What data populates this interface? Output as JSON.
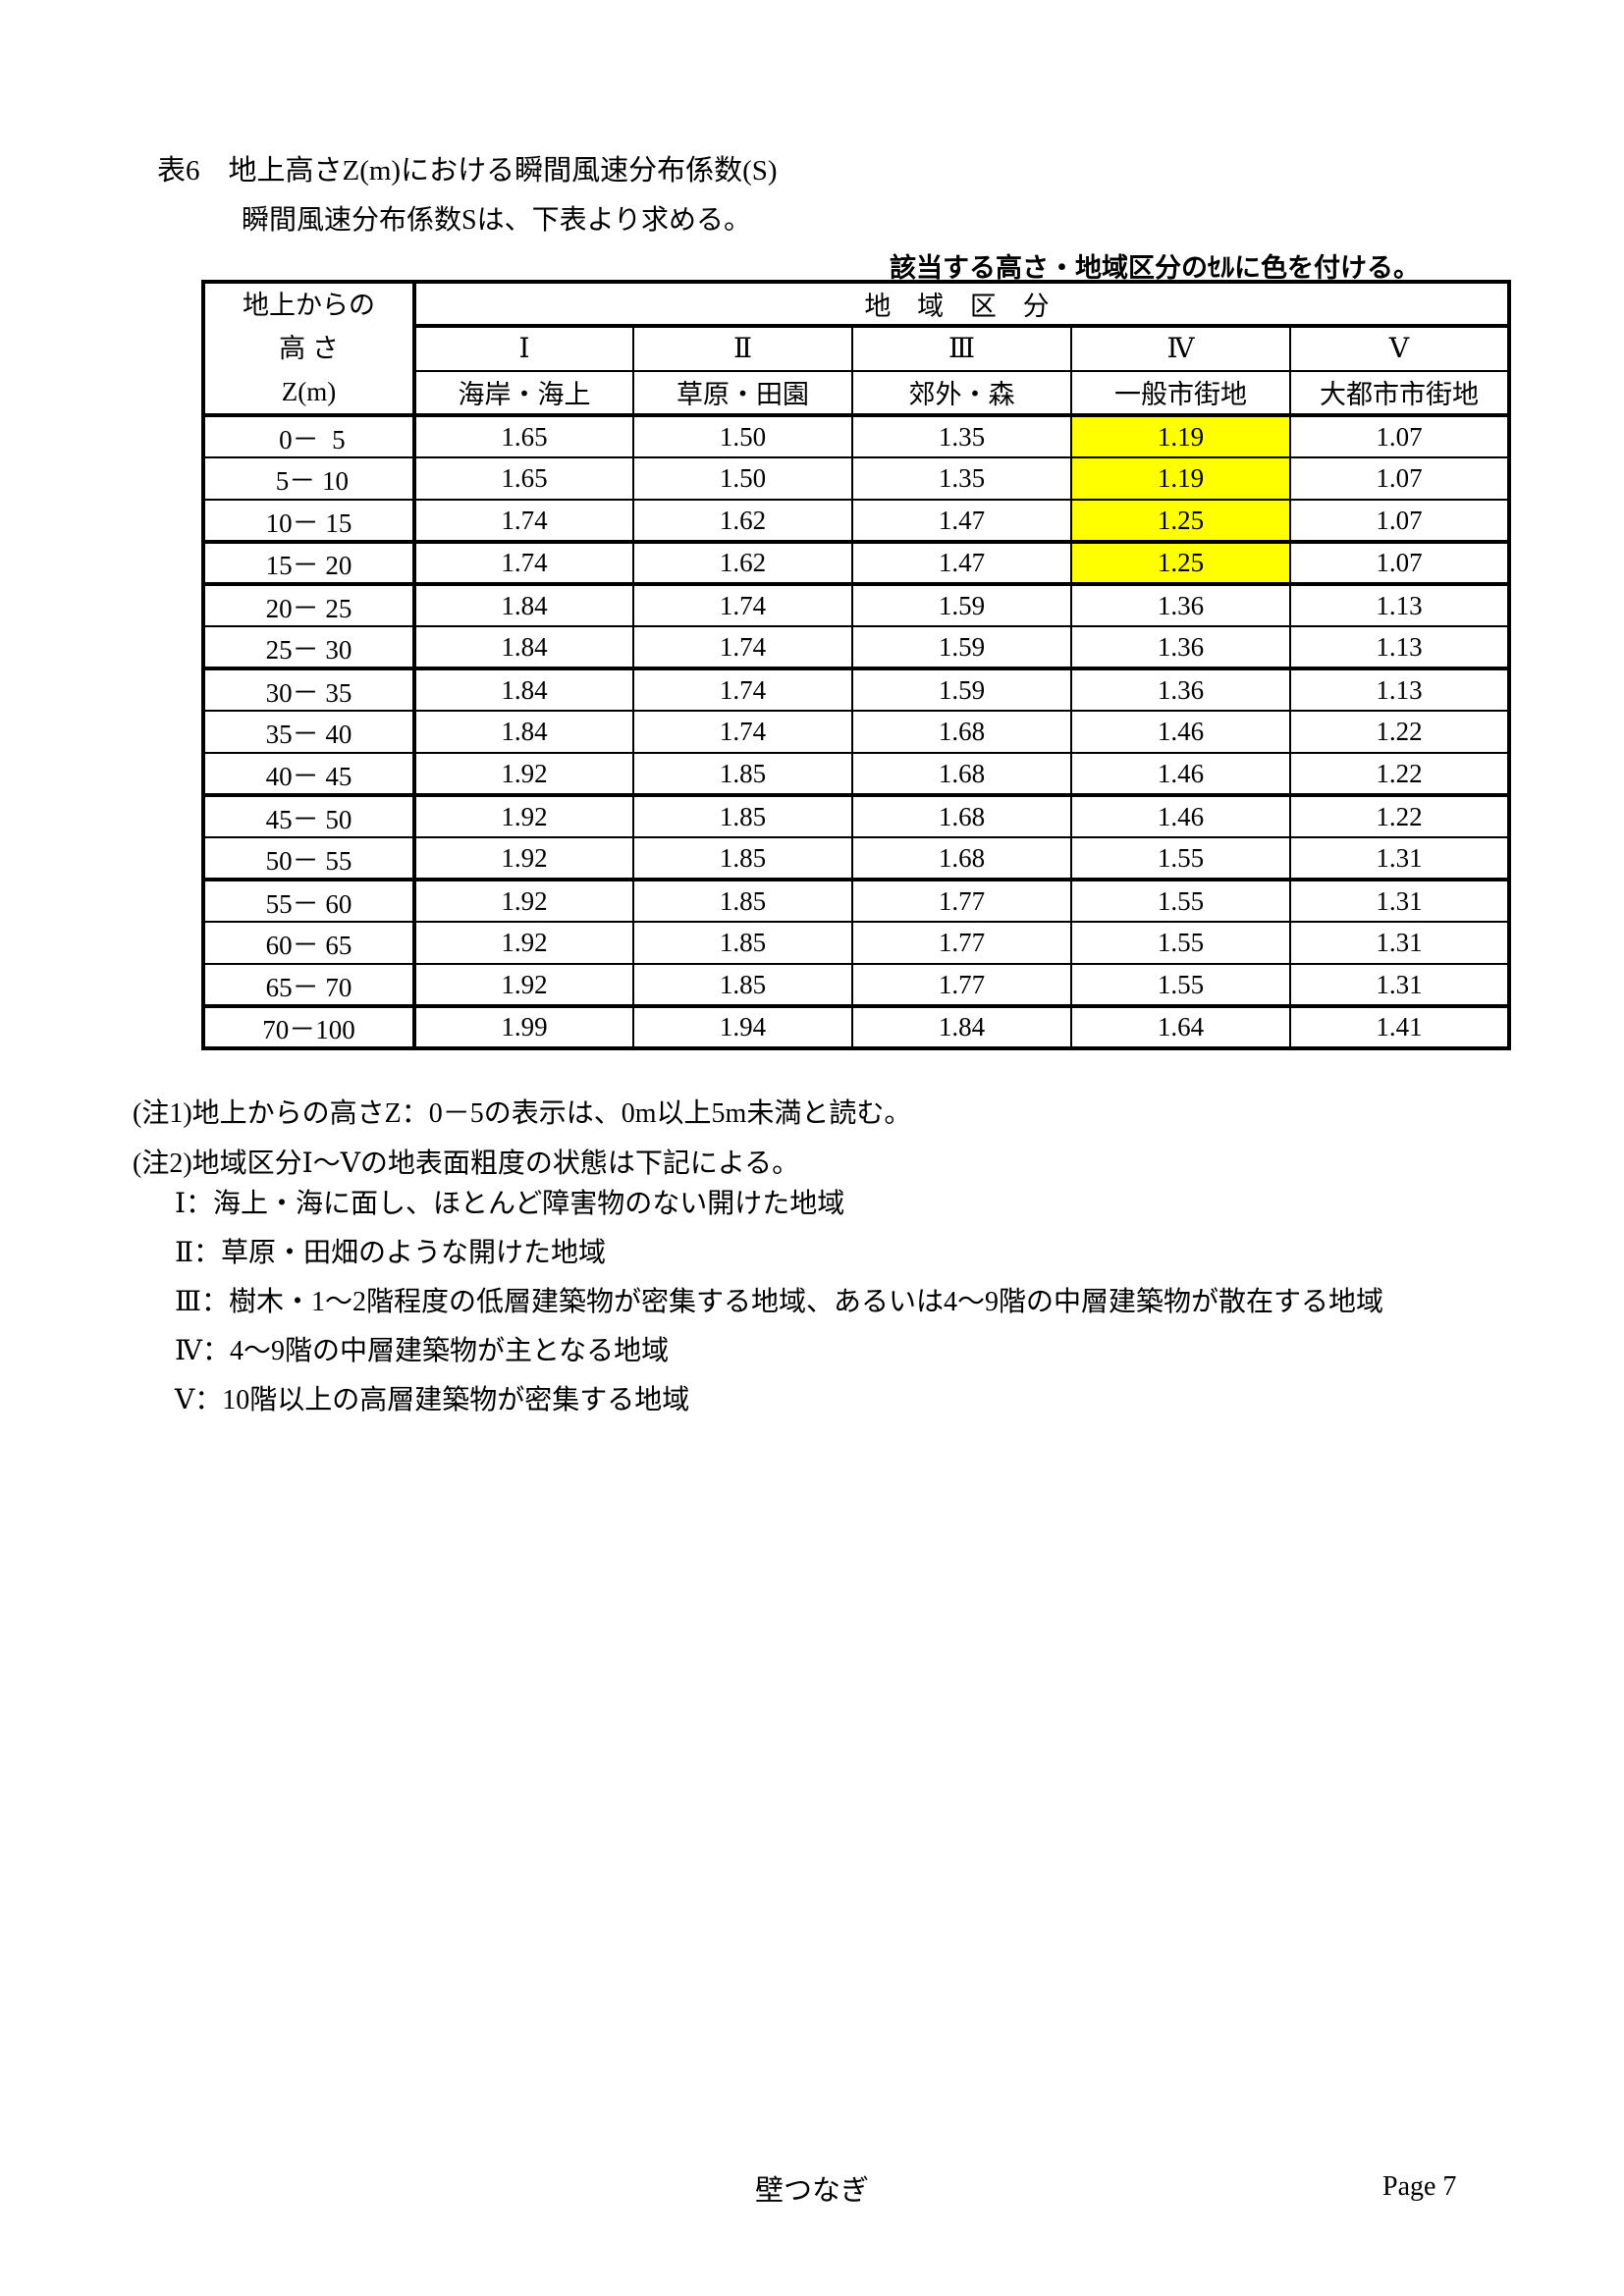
{
  "page": {
    "title": "表6　地上高さZ(m)における瞬間風速分布係数(S)",
    "subtitle": "瞬間風速分布係数Sは、下表より求める。",
    "highlight_instruction": "該当する高さ・地域区分のｾﾙに色を付ける。"
  },
  "table": {
    "corner_header": [
      "地上からの",
      "高 さ",
      "Z(m)"
    ],
    "group_header": "地 域 区 分",
    "highlight_color": "#ffff00",
    "columns": [
      {
        "numeral": "Ⅰ",
        "name": "海岸・海上"
      },
      {
        "numeral": "Ⅱ",
        "name": "草原・田園"
      },
      {
        "numeral": "Ⅲ",
        "name": "郊外・森"
      },
      {
        "numeral": "Ⅳ",
        "name": "一般市街地"
      },
      {
        "numeral": "Ⅴ",
        "name": "大都市市街地"
      }
    ],
    "rows": [
      {
        "height": " 0－  5",
        "values": [
          "1.65",
          "1.50",
          "1.35",
          "1.19",
          "1.07"
        ],
        "highlight_cols": [
          3
        ],
        "thick_bottom": false
      },
      {
        "height": " 5－ 10",
        "values": [
          "1.65",
          "1.50",
          "1.35",
          "1.19",
          "1.07"
        ],
        "highlight_cols": [
          3
        ],
        "thick_bottom": false
      },
      {
        "height": "10－ 15",
        "values": [
          "1.74",
          "1.62",
          "1.47",
          "1.25",
          "1.07"
        ],
        "highlight_cols": [
          3
        ],
        "thick_bottom": true
      },
      {
        "height": "15－ 20",
        "values": [
          "1.74",
          "1.62",
          "1.47",
          "1.25",
          "1.07"
        ],
        "highlight_cols": [
          3
        ],
        "thick_bottom": true
      },
      {
        "height": "20－ 25",
        "values": [
          "1.84",
          "1.74",
          "1.59",
          "1.36",
          "1.13"
        ],
        "highlight_cols": [],
        "thick_bottom": false
      },
      {
        "height": "25－ 30",
        "values": [
          "1.84",
          "1.74",
          "1.59",
          "1.36",
          "1.13"
        ],
        "highlight_cols": [],
        "thick_bottom": true
      },
      {
        "height": "30－ 35",
        "values": [
          "1.84",
          "1.74",
          "1.59",
          "1.36",
          "1.13"
        ],
        "highlight_cols": [],
        "thick_bottom": false
      },
      {
        "height": "35－ 40",
        "values": [
          "1.84",
          "1.74",
          "1.68",
          "1.46",
          "1.22"
        ],
        "highlight_cols": [],
        "thick_bottom": false
      },
      {
        "height": "40－ 45",
        "values": [
          "1.92",
          "1.85",
          "1.68",
          "1.46",
          "1.22"
        ],
        "highlight_cols": [],
        "thick_bottom": true
      },
      {
        "height": "45－ 50",
        "values": [
          "1.92",
          "1.85",
          "1.68",
          "1.46",
          "1.22"
        ],
        "highlight_cols": [],
        "thick_bottom": false
      },
      {
        "height": "50－ 55",
        "values": [
          "1.92",
          "1.85",
          "1.68",
          "1.55",
          "1.31"
        ],
        "highlight_cols": [],
        "thick_bottom": true
      },
      {
        "height": "55－ 60",
        "values": [
          "1.92",
          "1.85",
          "1.77",
          "1.55",
          "1.31"
        ],
        "highlight_cols": [],
        "thick_bottom": false
      },
      {
        "height": "60－ 65",
        "values": [
          "1.92",
          "1.85",
          "1.77",
          "1.55",
          "1.31"
        ],
        "highlight_cols": [],
        "thick_bottom": false
      },
      {
        "height": "65－ 70",
        "values": [
          "1.92",
          "1.85",
          "1.77",
          "1.55",
          "1.31"
        ],
        "highlight_cols": [],
        "thick_bottom": true
      },
      {
        "height": "70－100",
        "values": [
          "1.99",
          "1.94",
          "1.84",
          "1.64",
          "1.41"
        ],
        "highlight_cols": [],
        "thick_bottom": false
      }
    ]
  },
  "notes": {
    "note1": "(注1)地上からの高さZ：0－5の表示は、0m以上5m未満と読む。",
    "note2": "(注2)地域区分Ⅰ～Ⅴの地表面粗度の状態は下記による。",
    "region_definitions": [
      "Ⅰ：海上・海に面し、ほとんど障害物のない開けた地域",
      "Ⅱ：草原・田畑のような開けた地域",
      "Ⅲ：樹木・1～2階程度の低層建築物が密集する地域、あるいは4～9階の中層建築物が散在する地域",
      "Ⅳ：4～9階の中層建築物が主となる地域",
      "Ⅴ：10階以上の高層建築物が密集する地域"
    ]
  },
  "footer": {
    "doc_title": "壁つなぎ",
    "page_label": "Page 7"
  }
}
